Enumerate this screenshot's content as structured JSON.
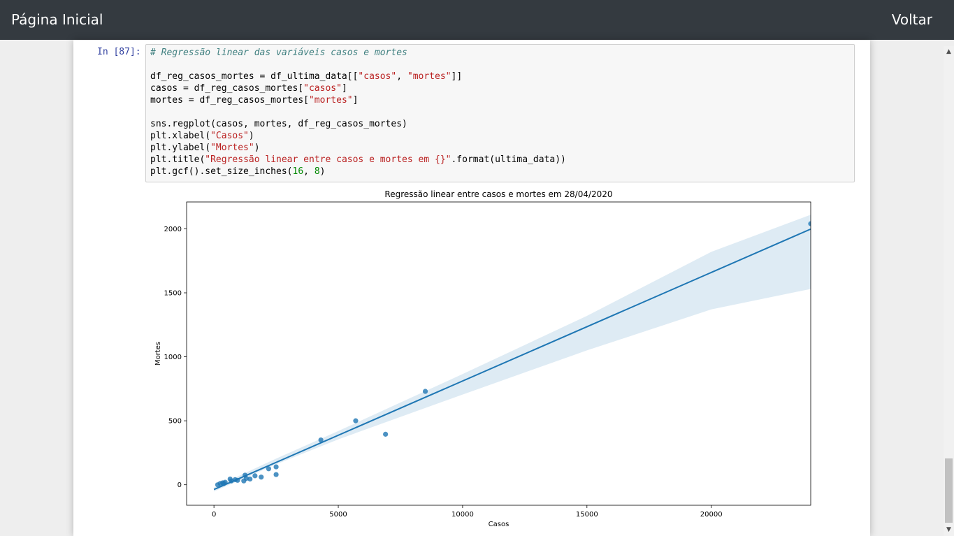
{
  "navbar": {
    "title": "Página Inicial",
    "back_label": "Voltar"
  },
  "cell": {
    "prompt": "In [87]:",
    "code_lines": [
      [
        {
          "t": "# Regressão linear das variáveis casos e mortes",
          "c": "comment"
        }
      ],
      [],
      [
        {
          "t": "df_reg_casos_mortes = df_ultima_data[["
        },
        {
          "t": "\"casos\"",
          "c": "string"
        },
        {
          "t": ", "
        },
        {
          "t": "\"mortes\"",
          "c": "string"
        },
        {
          "t": "]]"
        }
      ],
      [
        {
          "t": "casos = df_reg_casos_mortes["
        },
        {
          "t": "\"casos\"",
          "c": "string"
        },
        {
          "t": "]"
        }
      ],
      [
        {
          "t": "mortes = df_reg_casos_mortes["
        },
        {
          "t": "\"mortes\"",
          "c": "string"
        },
        {
          "t": "]"
        }
      ],
      [],
      [
        {
          "t": "sns.regplot(casos, mortes, df_reg_casos_mortes)"
        }
      ],
      [
        {
          "t": "plt.xlabel("
        },
        {
          "t": "\"Casos\"",
          "c": "string"
        },
        {
          "t": ")"
        }
      ],
      [
        {
          "t": "plt.ylabel("
        },
        {
          "t": "\"Mortes\"",
          "c": "string"
        },
        {
          "t": ")"
        }
      ],
      [
        {
          "t": "plt.title("
        },
        {
          "t": "\"Regressão linear entre casos e mortes em {}\"",
          "c": "string"
        },
        {
          "t": ".format(ultima_data))"
        }
      ],
      [
        {
          "t": "plt.gcf().set_size_inches("
        },
        {
          "t": "16",
          "c": "number"
        },
        {
          "t": ", "
        },
        {
          "t": "8",
          "c": "number"
        },
        {
          "t": ")"
        }
      ]
    ]
  },
  "chart_data": {
    "type": "scatter",
    "title": "Regressão linear entre casos e mortes em 28/04/2020",
    "xlabel": "Casos",
    "ylabel": "Mortes",
    "xlim": [
      -1100,
      24000
    ],
    "ylim": [
      -160,
      2210
    ],
    "xticks": [
      0,
      5000,
      10000,
      15000,
      20000
    ],
    "yticks": [
      0,
      500,
      1000,
      1500,
      2000
    ],
    "grid": false,
    "point_color": "#1f77b4",
    "regression": {
      "slope": 0.0848,
      "intercept": -37
    },
    "confidence_band": [
      {
        "x": 0,
        "lo": -52,
        "hi": -22
      },
      {
        "x": 2500,
        "lo": 160,
        "hi": 205
      },
      {
        "x": 5000,
        "lo": 355,
        "hi": 420
      },
      {
        "x": 10000,
        "lo": 705,
        "hi": 865
      },
      {
        "x": 15000,
        "lo": 1050,
        "hi": 1320
      },
      {
        "x": 20000,
        "lo": 1370,
        "hi": 1820
      },
      {
        "x": 24000,
        "lo": 1530,
        "hi": 2110
      }
    ],
    "points": [
      {
        "x": 24000,
        "y": 2040
      },
      {
        "x": 8500,
        "y": 730
      },
      {
        "x": 5700,
        "y": 500
      },
      {
        "x": 6900,
        "y": 395
      },
      {
        "x": 4300,
        "y": 350
      },
      {
        "x": 2500,
        "y": 140
      },
      {
        "x": 2500,
        "y": 80
      },
      {
        "x": 2200,
        "y": 125
      },
      {
        "x": 1900,
        "y": 60
      },
      {
        "x": 1650,
        "y": 70
      },
      {
        "x": 1450,
        "y": 45
      },
      {
        "x": 1250,
        "y": 75
      },
      {
        "x": 1300,
        "y": 50
      },
      {
        "x": 1200,
        "y": 30
      },
      {
        "x": 950,
        "y": 35
      },
      {
        "x": 850,
        "y": 40
      },
      {
        "x": 700,
        "y": 30
      },
      {
        "x": 650,
        "y": 45
      },
      {
        "x": 450,
        "y": 20
      },
      {
        "x": 400,
        "y": 10
      },
      {
        "x": 350,
        "y": 15
      },
      {
        "x": 250,
        "y": 10
      },
      {
        "x": 150,
        "y": 0
      }
    ]
  }
}
